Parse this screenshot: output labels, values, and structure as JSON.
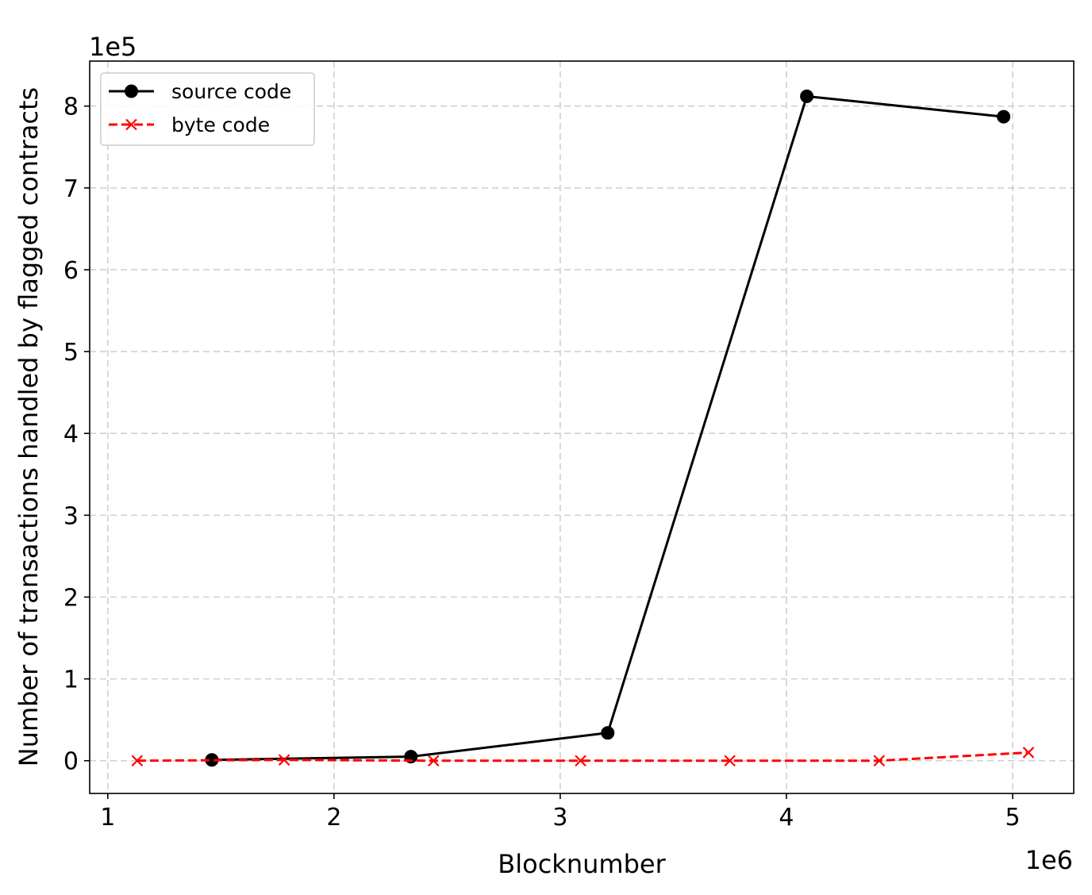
{
  "chart_data": {
    "type": "line",
    "xlabel": "Blocknumber",
    "ylabel": "Number of transactions handled by flagged contracts",
    "x_scale_label": "1e6",
    "y_scale_label": "1e5",
    "xlim": [
      0.92,
      5.27
    ],
    "ylim": [
      -0.4,
      8.55
    ],
    "x_ticks": [
      1,
      2,
      3,
      4,
      5
    ],
    "y_ticks": [
      0,
      1,
      2,
      3,
      4,
      5,
      6,
      7,
      8
    ],
    "grid": true,
    "grid_style": "dashed",
    "legend_position": "upper-left",
    "series": [
      {
        "name": "source code",
        "color": "#000000",
        "line_style": "solid",
        "marker": "circle",
        "x": [
          1.46,
          2.34,
          3.21,
          4.09,
          4.96
        ],
        "y": [
          0.01,
          0.05,
          0.34,
          8.12,
          7.87
        ]
      },
      {
        "name": "byte code",
        "color": "#ff0000",
        "line_style": "dashed",
        "marker": "x",
        "x": [
          1.13,
          1.78,
          2.44,
          3.09,
          3.75,
          4.41,
          5.07
        ],
        "y": [
          0.0,
          0.01,
          0.0,
          0.0,
          0.0,
          0.0,
          0.1
        ]
      }
    ]
  }
}
